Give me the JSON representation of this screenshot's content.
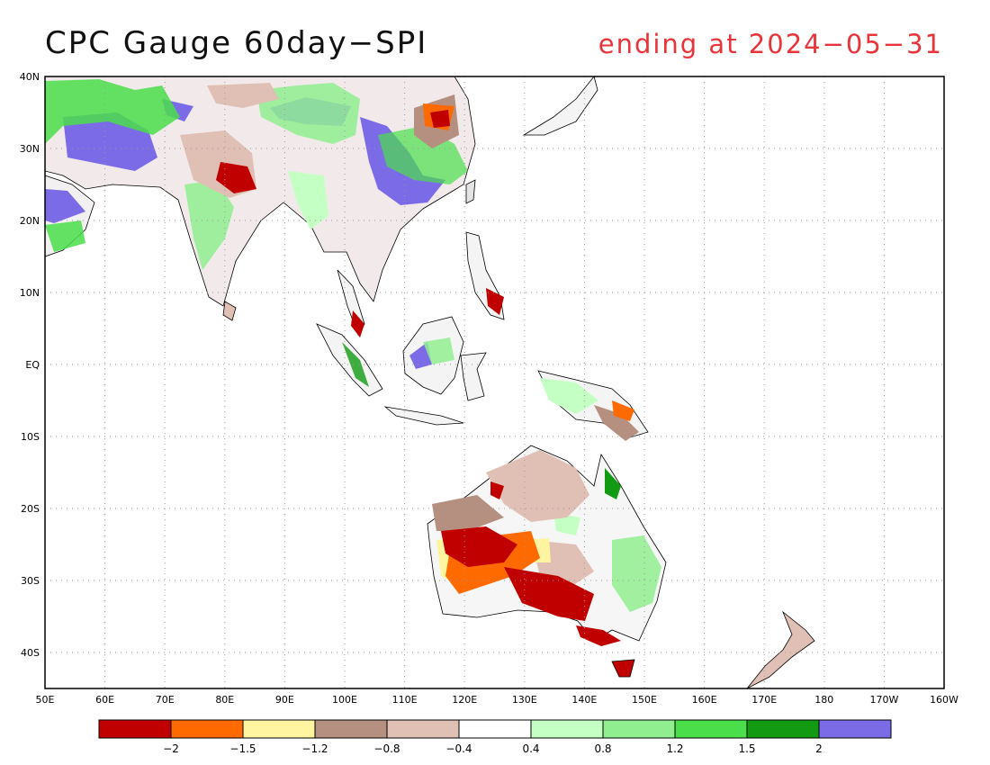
{
  "title": "CPC Gauge 60day−SPI",
  "subtitle": "ending at 2024−05−31",
  "map": {
    "lon_range": [
      50,
      200
    ],
    "lat_range": [
      -45,
      40
    ],
    "lon_ticks": [
      "50E",
      "60E",
      "70E",
      "80E",
      "90E",
      "100E",
      "110E",
      "120E",
      "130E",
      "140E",
      "150E",
      "160E",
      "170E",
      "180",
      "170W",
      "160W"
    ],
    "lat_ticks": [
      "40N",
      "30N",
      "20N",
      "10N",
      "EQ",
      "10S",
      "20S",
      "30S",
      "40S"
    ],
    "lat_tick_values": [
      40,
      30,
      20,
      10,
      0,
      -10,
      -20,
      -30,
      -40
    ],
    "grid": "dotted"
  },
  "legend": {
    "colors": [
      "#c00000",
      "#ff6a00",
      "#fff5a0",
      "#b59080",
      "#e0c0b4",
      "#ffffff",
      "#c4ffc4",
      "#90ee90",
      "#4ade4a",
      "#129a12",
      "#7c6be6"
    ],
    "labels": [
      "−2",
      "−1.5",
      "−1.2",
      "−0.8",
      "−0.4",
      "0.4",
      "0.8",
      "1.2",
      "1.5",
      "2"
    ]
  }
}
